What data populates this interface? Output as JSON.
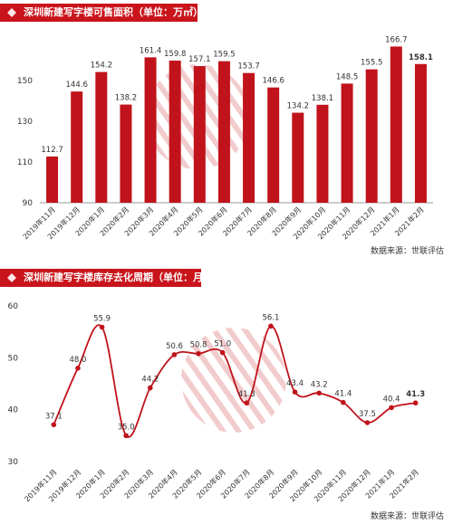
{
  "colors": {
    "accent": "#c9141b",
    "bar": "#c0131b",
    "line": "#c0131b",
    "watermark": "#e8a4a6"
  },
  "icons": {
    "title_marker": "diamond-icon",
    "watermark": "logo-watermark-icon"
  },
  "chart_data": [
    {
      "type": "bar",
      "title": "深圳新建写字楼可售面积（单位：万㎡）",
      "source": "数据来源：世联评估",
      "categories": [
        "2019年11月",
        "2019年12月",
        "2020年1月",
        "2020年2月",
        "2020年3月",
        "2020年4月",
        "2020年5月",
        "2020年6月",
        "2020年7月",
        "2020年8月",
        "2020年9月",
        "2020年10月",
        "2020年11月",
        "2020年12月",
        "2021年1月",
        "2021年2月"
      ],
      "values": [
        112.7,
        144.6,
        154.2,
        138.2,
        161.4,
        159.8,
        157.1,
        159.5,
        153.7,
        146.6,
        134.2,
        138.1,
        148.5,
        155.5,
        166.7,
        158.1
      ],
      "value_labels": [
        "112.7",
        "144.6",
        "154.2",
        "138.2",
        "161.4",
        "159.8",
        "157.1",
        "159.5",
        "153.7",
        "146.6",
        "134.2",
        "138.1",
        "148.5",
        "155.5",
        "166.7",
        "158.1"
      ],
      "yticks": [
        90,
        110,
        130,
        150
      ],
      "ylim": [
        90,
        170
      ],
      "grid": false,
      "highlight_last": true
    },
    {
      "type": "line",
      "title": "深圳新建写字楼库存去化周期（单位：月）",
      "source": "数据来源：世联评估",
      "categories": [
        "2019年11月",
        "2019年12月",
        "2020年1月",
        "2020年2月",
        "2020年3月",
        "2020年4月",
        "2020年5月",
        "2020年6月",
        "2020年7月",
        "2020年8月",
        "2020年9月",
        "2020年10月",
        "2020年11月",
        "2020年12月",
        "2021年1月",
        "2021年2月"
      ],
      "values": [
        37.1,
        48.0,
        55.9,
        35.0,
        44.2,
        50.6,
        50.8,
        51.0,
        41.3,
        56.1,
        43.4,
        43.2,
        41.4,
        37.5,
        40.4,
        41.3
      ],
      "value_labels": [
        "37.1",
        "48.0",
        "55.9",
        "35.0",
        "44.2",
        "50.6",
        "50.8",
        "51.0",
        "41.3",
        "56.1",
        "43.4",
        "43.2",
        "41.4",
        "37.5",
        "40.4",
        "41.3"
      ],
      "yticks": [
        30,
        40,
        50,
        60
      ],
      "ylim": [
        30,
        60
      ],
      "grid": false,
      "smooth": true,
      "highlight_last": true
    }
  ]
}
